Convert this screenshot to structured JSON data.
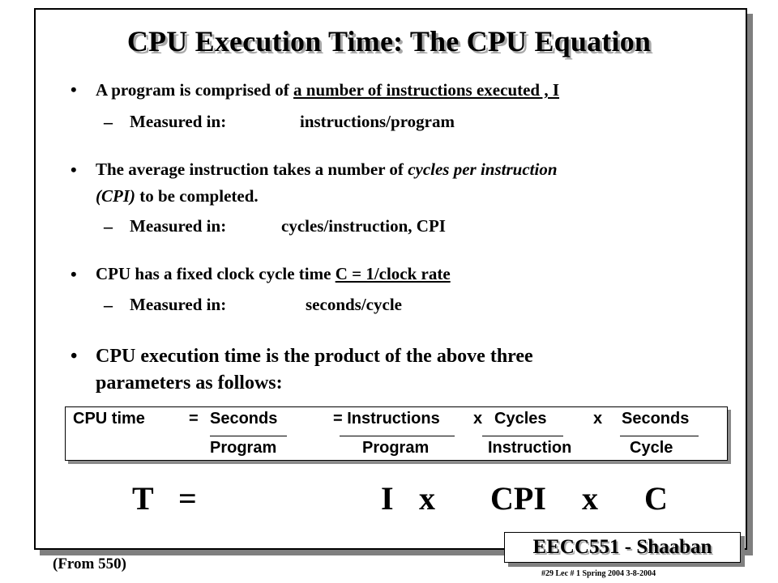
{
  "title": "CPU Execution Time: The CPU Equation",
  "bullets": {
    "b1": {
      "prefix": "A program is comprised of ",
      "underlined": "a number of instructions executed ,  I",
      "sub": {
        "label": "Measured in:",
        "value": "instructions/program"
      }
    },
    "b2": {
      "part1": "The average instruction takes a number of ",
      "italic": "cycles per instruction",
      "line2_italic": "(CPI)",
      "line2_rest": " to be completed.",
      "sub": {
        "label": "Measured in:",
        "value": "cycles/instruction,  CPI"
      }
    },
    "b3": {
      "prefix": "CPU has a fixed clock cycle time  ",
      "underlined": "C  = 1/clock rate",
      "sub": {
        "label": "Measured in:",
        "value": "seconds/cycle"
      }
    },
    "b4": {
      "line1": "CPU execution time is the product of the above three",
      "line2": "parameters  as follows:"
    }
  },
  "equation": {
    "lhs": "CPU time",
    "eq1": "=",
    "t1_num": "Seconds",
    "t1_den": "Program",
    "eq2": "= Instructions",
    "t2_den": "Program",
    "x1": "x",
    "t3_num": "Cycles",
    "t3_den": "Instruction",
    "x2": "x",
    "t4_num": "Seconds",
    "t4_den": "Cycle"
  },
  "formula": {
    "T": "T",
    "eq": "=",
    "I": "I",
    "x1": "x",
    "CPI": "CPI",
    "x2": "x",
    "C": "C"
  },
  "badge": "EECC551  - Shaaban",
  "from": "(From 550)",
  "footer": "#29   Lec # 1 Spring 2004   3-8-2004",
  "bullet_symbol": "•",
  "dash_symbol": "–"
}
